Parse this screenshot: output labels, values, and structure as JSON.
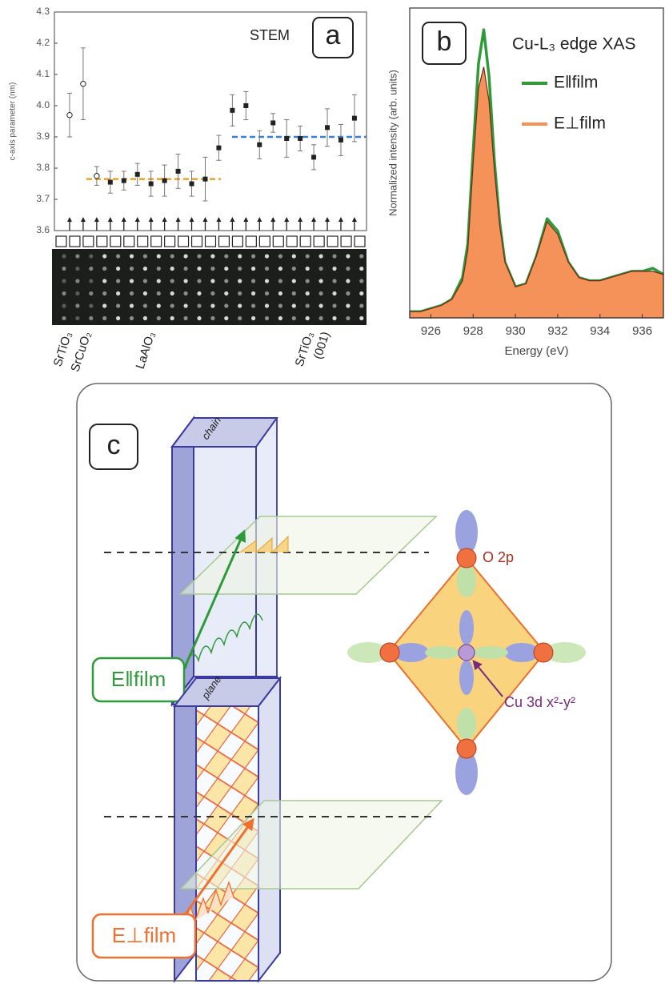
{
  "chart_data": [
    {
      "type": "errorbar",
      "panel_label": "a",
      "annotation": "STEM",
      "ylabel": "c-axis parameter (nm)",
      "categories": [
        null,
        null,
        null,
        null,
        null,
        null,
        null,
        null,
        null,
        null,
        null,
        null,
        null,
        null,
        null,
        null,
        null,
        null,
        null,
        null,
        null,
        null
      ],
      "series": [
        {
          "color": "#222222",
          "values": [
            3.97,
            4.07,
            3.775,
            3.755,
            3.76,
            3.78,
            3.75,
            3.76,
            3.79,
            3.75,
            3.765,
            3.865,
            3.985,
            4.0,
            3.875,
            3.945,
            3.895,
            3.895,
            3.835,
            3.93,
            3.89,
            3.96
          ],
          "errors": [
            0.07,
            0.115,
            0.03,
            0.035,
            0.03,
            0.035,
            0.04,
            0.05,
            0.055,
            0.04,
            0.07,
            0.04,
            0.05,
            0.045,
            0.045,
            0.03,
            0.06,
            0.04,
            0.04,
            0.06,
            0.05,
            0.075
          ],
          "markers": [
            "open",
            "open",
            "open",
            "filled",
            "filled",
            "filled",
            "filled",
            "filled",
            "filled",
            "filled",
            "filled",
            "filled",
            "filled",
            "filled",
            "filled",
            "filled",
            "filled",
            "filled",
            "filled",
            "filled",
            "filled",
            "filled"
          ]
        }
      ],
      "reference_lines": [
        {
          "value": 3.765,
          "color": "#f0a020"
        },
        {
          "value": 3.9,
          "color": "#3a7fd8"
        }
      ],
      "ylim": [
        3.6,
        4.3
      ],
      "yticks": [
        3.6,
        3.7,
        3.8,
        3.9,
        {
          "value": 4.0,
          "label": "4.0"
        },
        4.1,
        4.2,
        4.3
      ],
      "layer_labels": [
        "SrTiO₃",
        "SrCuO₂",
        "LaAlO₃",
        "SrTiO₃",
        "(001)"
      ]
    },
    {
      "type": "spectrum",
      "panel_label": "b",
      "title": "Cu-L₃ edge XAS",
      "xlabel": "Energy (eV)",
      "ylabel": "Normalized intensity (arb. units)",
      "x": [
        925,
        925.5,
        926,
        926.5,
        927,
        927.5,
        927.75,
        928,
        928.25,
        928.5,
        928.75,
        929,
        929.25,
        929.5,
        930,
        930.5,
        931,
        931.5,
        932,
        932.5,
        933,
        933.5,
        934,
        934.5,
        935,
        935.5,
        936,
        936.5,
        937
      ],
      "series": [
        {
          "name": "E‖film",
          "color": "#2e9a3a",
          "style": "line",
          "values": [
            0.02,
            0.02,
            0.03,
            0.04,
            0.06,
            0.13,
            0.24,
            0.54,
            0.82,
            0.93,
            0.78,
            0.51,
            0.31,
            0.18,
            0.1,
            0.11,
            0.2,
            0.32,
            0.28,
            0.18,
            0.13,
            0.12,
            0.12,
            0.13,
            0.14,
            0.15,
            0.15,
            0.16,
            0.14
          ]
        },
        {
          "name": "E⊥film",
          "color": "#f4925a",
          "style": "area",
          "values": [
            0.02,
            0.02,
            0.03,
            0.04,
            0.06,
            0.12,
            0.22,
            0.5,
            0.74,
            0.81,
            0.7,
            0.48,
            0.3,
            0.18,
            0.1,
            0.11,
            0.2,
            0.31,
            0.27,
            0.18,
            0.13,
            0.12,
            0.12,
            0.13,
            0.14,
            0.15,
            0.15,
            0.15,
            0.14
          ]
        }
      ],
      "xlim": [
        925,
        937
      ],
      "ylim": [
        0,
        1
      ],
      "xticks": [
        926,
        928,
        930,
        932,
        934,
        936
      ]
    }
  ],
  "diagram": {
    "panel_label": "c",
    "slab_top": "chain",
    "slab_bottom": "plane",
    "label_parallel": "E‖film",
    "label_perp": "E⊥film",
    "orbital_o": "O 2p",
    "orbital_cu": "Cu 3d x²-y²"
  }
}
